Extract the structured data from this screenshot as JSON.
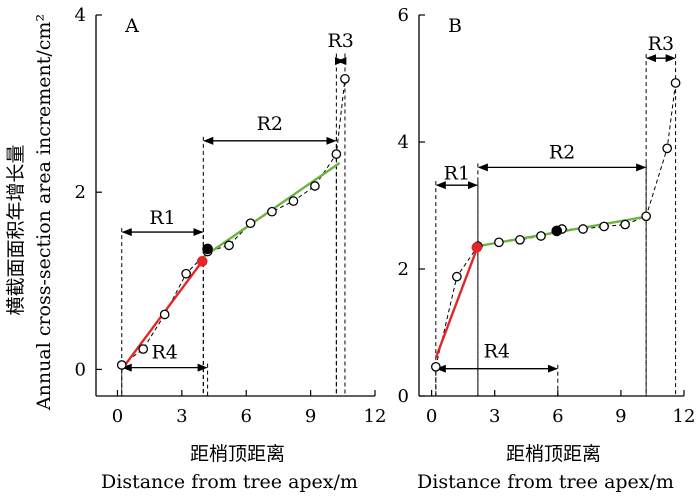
{
  "figure": {
    "ylabel_cn": "横截面面积年增长量",
    "ylabel_en": "Annual cross-section area increment/cm²"
  },
  "chart_data": [
    {
      "panel": "A",
      "type": "scatter",
      "title": "A",
      "xlabel_cn": "距梢顶距离",
      "xlabel_en": "Distance from tree apex/m",
      "xlim": [
        -1,
        12
      ],
      "ylim": [
        -0.3,
        4
      ],
      "xticks": [
        0,
        3,
        6,
        9,
        12
      ],
      "yticks": [
        0,
        2,
        4
      ],
      "points": [
        {
          "x": 0.2,
          "y": 0.05
        },
        {
          "x": 1.2,
          "y": 0.23
        },
        {
          "x": 2.2,
          "y": 0.62
        },
        {
          "x": 3.2,
          "y": 1.08
        },
        {
          "x": 4.2,
          "y": 1.33
        },
        {
          "x": 5.2,
          "y": 1.4
        },
        {
          "x": 6.2,
          "y": 1.65
        },
        {
          "x": 7.2,
          "y": 1.78
        },
        {
          "x": 8.2,
          "y": 1.9
        },
        {
          "x": 9.2,
          "y": 2.07
        },
        {
          "x": 10.2,
          "y": 2.43
        },
        {
          "x": 10.6,
          "y": 3.28
        }
      ],
      "filled_points": [
        {
          "x": 4.2,
          "y": 1.36,
          "color": "#000000"
        },
        {
          "x": 3.95,
          "y": 1.22,
          "color": "#e0282a"
        }
      ],
      "fit_lines": [
        {
          "name": "red",
          "color": "#e0282a",
          "x": [
            0.2,
            3.95
          ],
          "y": [
            0.0,
            1.22
          ]
        },
        {
          "name": "green",
          "color": "#6db33f",
          "x": [
            3.95,
            10.35
          ],
          "y": [
            1.26,
            2.33
          ]
        }
      ],
      "regions": [
        {
          "label": "R1",
          "x0": 0.2,
          "x1": 4.0,
          "y": 1.55,
          "label_y": 1.72,
          "line_top": 1.55
        },
        {
          "label": "R2",
          "x0": 4.0,
          "x1": 10.2,
          "y": 2.58,
          "label_y": 2.78,
          "line_top": 2.58
        },
        {
          "label": "R3",
          "x0": 10.2,
          "x1": 10.6,
          "y": 3.48,
          "label_y": 3.72,
          "line_top": 3.52
        },
        {
          "label": "R4",
          "x0": 0.2,
          "x1": 4.2,
          "y": 0.02,
          "label_y": 0.2,
          "line_top": 0.02
        }
      ]
    },
    {
      "panel": "B",
      "type": "scatter",
      "title": "B",
      "xlabel_cn": "距梢顶距离",
      "xlabel_en": "Distance from tree apex/m",
      "xlim": [
        -0.6,
        12
      ],
      "ylim": [
        0,
        6
      ],
      "xticks": [
        0,
        3,
        6,
        9,
        12
      ],
      "yticks": [
        0,
        2,
        4,
        6
      ],
      "points": [
        {
          "x": 0.2,
          "y": 0.46
        },
        {
          "x": 1.2,
          "y": 1.88
        },
        {
          "x": 2.2,
          "y": 2.36
        },
        {
          "x": 3.2,
          "y": 2.42
        },
        {
          "x": 4.2,
          "y": 2.46
        },
        {
          "x": 5.2,
          "y": 2.52
        },
        {
          "x": 6.2,
          "y": 2.63
        },
        {
          "x": 7.2,
          "y": 2.63
        },
        {
          "x": 8.2,
          "y": 2.67
        },
        {
          "x": 9.2,
          "y": 2.7
        },
        {
          "x": 10.2,
          "y": 2.83
        },
        {
          "x": 11.2,
          "y": 3.9
        },
        {
          "x": 11.6,
          "y": 4.93
        }
      ],
      "filled_points": [
        {
          "x": 5.95,
          "y": 2.6,
          "color": "#000000"
        },
        {
          "x": 2.15,
          "y": 2.34,
          "color": "#e0282a"
        }
      ],
      "fit_lines": [
        {
          "name": "red",
          "color": "#e0282a",
          "x": [
            0.2,
            2.2
          ],
          "y": [
            0.6,
            2.36
          ]
        },
        {
          "name": "green",
          "color": "#6db33f",
          "x": [
            2.2,
            10.3
          ],
          "y": [
            2.36,
            2.83
          ]
        }
      ],
      "regions": [
        {
          "label": "R1",
          "x0": 0.2,
          "x1": 2.2,
          "y": 3.32,
          "label_y": 3.52,
          "line_top": 3.32
        },
        {
          "label": "R2",
          "x0": 2.2,
          "x1": 10.2,
          "y": 3.6,
          "label_y": 3.85,
          "line_top": 3.6
        },
        {
          "label": "R3",
          "x0": 10.2,
          "x1": 11.6,
          "y": 5.32,
          "label_y": 5.56,
          "line_top": 5.32
        },
        {
          "label": "R4",
          "x0": 0.2,
          "x1": 6.0,
          "y": 0.43,
          "label_y": 0.72,
          "line_top": 0.43
        }
      ]
    }
  ]
}
